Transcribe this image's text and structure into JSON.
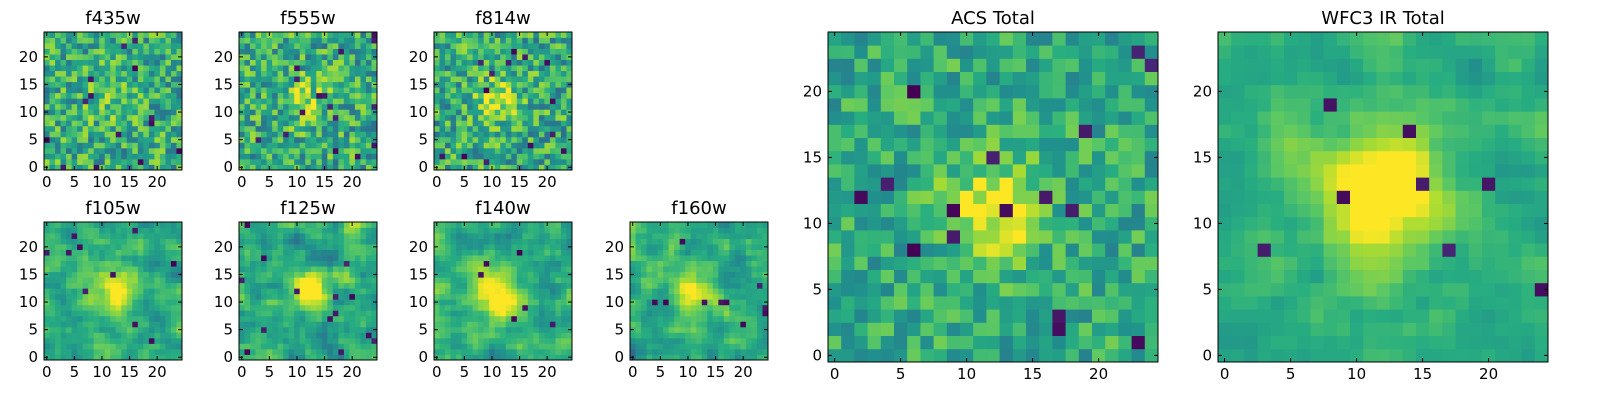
{
  "chart_data": {
    "type": "heatmap",
    "colormap": "viridis",
    "grid_size": 25,
    "panels": [
      {
        "id": "f435w",
        "title": "f435w",
        "x_ticks": [
          "0",
          "5",
          "10",
          "15",
          "20"
        ],
        "y_ticks": [
          "0",
          "5",
          "10",
          "15",
          "20"
        ],
        "xlim": [
          0,
          25
        ],
        "ylim": [
          0,
          25
        ],
        "central_peak": 0.15,
        "peak_center": [
          12,
          12
        ],
        "peak_sigma": 3.0,
        "noise": 0.5,
        "smooth": 0,
        "dark_pixels": 14
      },
      {
        "id": "f555w",
        "title": "f555w",
        "x_ticks": [
          "0",
          "5",
          "10",
          "15",
          "20"
        ],
        "y_ticks": [
          "0",
          "5",
          "10",
          "15",
          "20"
        ],
        "xlim": [
          0,
          25
        ],
        "ylim": [
          0,
          25
        ],
        "central_peak": 0.2,
        "peak_center": [
          12,
          12
        ],
        "peak_sigma": 3.0,
        "noise": 0.5,
        "smooth": 0,
        "dark_pixels": 16
      },
      {
        "id": "f814w",
        "title": "f814w",
        "x_ticks": [
          "0",
          "5",
          "10",
          "15",
          "20"
        ],
        "y_ticks": [
          "0",
          "5",
          "10",
          "15",
          "20"
        ],
        "xlim": [
          0,
          25
        ],
        "ylim": [
          0,
          25
        ],
        "central_peak": 0.35,
        "peak_center": [
          11,
          12
        ],
        "peak_sigma": 2.5,
        "noise": 0.5,
        "smooth": 0,
        "dark_pixels": 14
      },
      {
        "id": "f105w",
        "title": "f105w",
        "x_ticks": [
          "0",
          "5",
          "10",
          "15",
          "20"
        ],
        "y_ticks": [
          "0",
          "5",
          "10",
          "15",
          "20"
        ],
        "xlim": [
          0,
          25
        ],
        "ylim": [
          0,
          25
        ],
        "central_peak": 0.45,
        "peak_center": [
          12,
          12
        ],
        "peak_sigma": 3.0,
        "noise": 0.4,
        "smooth": 1,
        "dark_pixels": 10
      },
      {
        "id": "f125w",
        "title": "f125w",
        "x_ticks": [
          "0",
          "5",
          "10",
          "15",
          "20"
        ],
        "y_ticks": [
          "0",
          "5",
          "10",
          "15",
          "20"
        ],
        "xlim": [
          0,
          25
        ],
        "ylim": [
          0,
          25
        ],
        "central_peak": 0.45,
        "peak_center": [
          13,
          12
        ],
        "peak_sigma": 2.5,
        "noise": 0.45,
        "smooth": 1,
        "dark_pixels": 14
      },
      {
        "id": "f140w",
        "title": "f140w",
        "x_ticks": [
          "0",
          "5",
          "10",
          "15",
          "20"
        ],
        "y_ticks": [
          "0",
          "5",
          "10",
          "15",
          "20"
        ],
        "xlim": [
          0,
          25
        ],
        "ylim": [
          0,
          25
        ],
        "central_peak": 0.45,
        "peak_center": [
          11,
          11
        ],
        "peak_sigma": 3.0,
        "noise": 0.4,
        "smooth": 1,
        "dark_pixels": 6
      },
      {
        "id": "f160w",
        "title": "f160w",
        "x_ticks": [
          "0",
          "5",
          "10",
          "15",
          "20"
        ],
        "y_ticks": [
          "0",
          "5",
          "10",
          "15",
          "20"
        ],
        "xlim": [
          0,
          25
        ],
        "ylim": [
          0,
          25
        ],
        "central_peak": 0.5,
        "peak_center": [
          11,
          12
        ],
        "peak_sigma": 2.5,
        "noise": 0.4,
        "smooth": 1,
        "dark_pixels": 10
      },
      {
        "id": "acs-total",
        "title": "ACS Total",
        "x_ticks": [
          "0",
          "5",
          "10",
          "15",
          "20"
        ],
        "y_ticks": [
          "0",
          "5",
          "10",
          "15",
          "20"
        ],
        "xlim": [
          0,
          25
        ],
        "ylim": [
          0,
          25
        ],
        "central_peak": 0.4,
        "peak_center": [
          12,
          11
        ],
        "peak_sigma": 2.5,
        "noise": 0.35,
        "smooth": 0,
        "dark_pixels": 16
      },
      {
        "id": "wfc3-ir-total",
        "title": "WFC3 IR Total",
        "x_ticks": [
          "0",
          "5",
          "10",
          "15",
          "20"
        ],
        "y_ticks": [
          "0",
          "5",
          "10",
          "15",
          "20"
        ],
        "xlim": [
          0,
          25
        ],
        "ylim": [
          0,
          25
        ],
        "central_peak": 0.55,
        "peak_center": [
          12,
          12
        ],
        "peak_sigma": 3.5,
        "noise": 0.25,
        "smooth": 1,
        "dark_pixels": 8
      }
    ]
  }
}
